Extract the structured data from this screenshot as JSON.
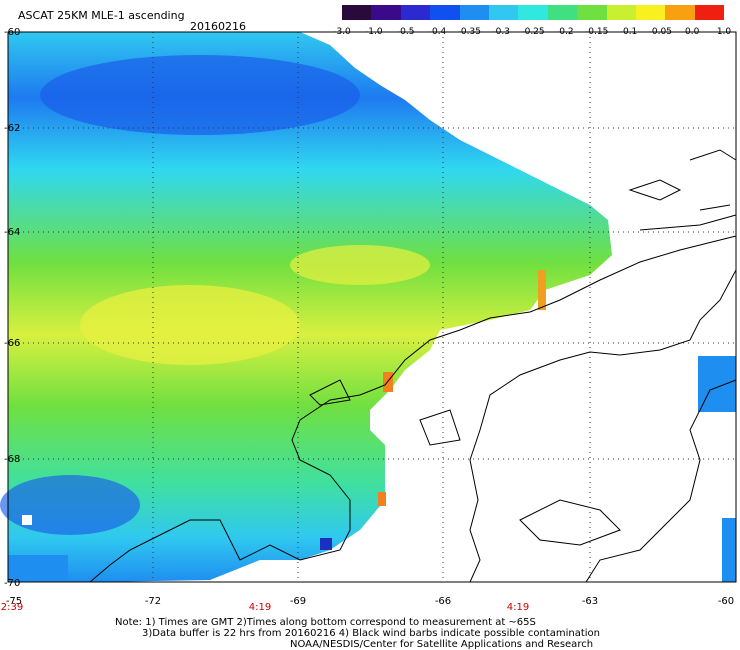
{
  "header": {
    "title": "ASCAT 25KM MLE-1 ascending",
    "date": "20160216"
  },
  "colorbar": {
    "labels": [
      "-3.0",
      "-1.0",
      "-0.5",
      "-0.4",
      "-0.35",
      "-0.3",
      "-0.25",
      "-0.2",
      "-0.15",
      "-0.1",
      "-0.05",
      "0.0",
      "1.0"
    ],
    "colors": [
      "#2a0a3a",
      "#3a0a8a",
      "#2a2ad0",
      "#1050f0",
      "#1e8ef0",
      "#30c8f0",
      "#30e8e0",
      "#40e080",
      "#70e040",
      "#c8f030",
      "#f8f020",
      "#f8a010",
      "#f02010"
    ]
  },
  "map": {
    "lat_labels": [
      "-60",
      "-62",
      "-64",
      "-66",
      "-68",
      "-70"
    ],
    "lon_labels": [
      "-75",
      "-72",
      "-69",
      "-66",
      "-63",
      "-60"
    ],
    "time_labels": [
      "2:39",
      "4:19",
      "4:19"
    ]
  },
  "notes": {
    "line1": "Note: 1) Times are GMT 2)Times along bottom correspond to measurement at ~65S",
    "line2": "3)Data buffer is 22 hrs from 20160216 4) Black wind barbs indicate possible contamination",
    "line3": "NOAA/NESDIS/Center for Satellite Applications and Research"
  }
}
